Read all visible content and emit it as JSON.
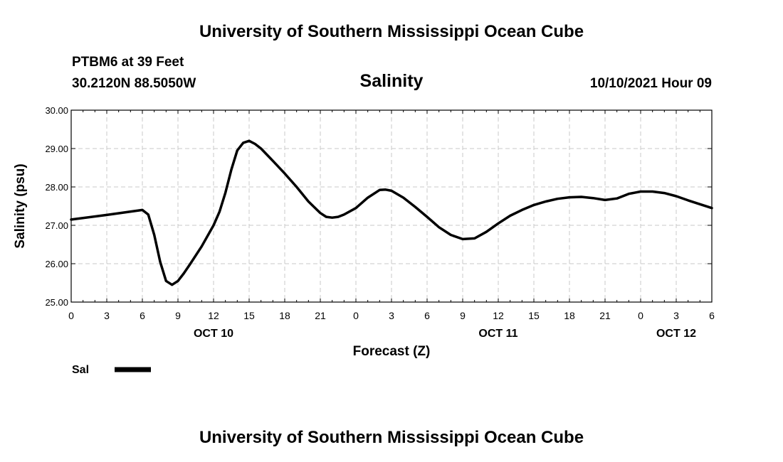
{
  "header": {
    "title_top": "University of Southern Mississippi Ocean Cube",
    "station": "PTBM6 at 39 Feet",
    "coords": "30.2120N  88.5050W",
    "datetime": "10/10/2021 Hour 09"
  },
  "footer": {
    "title_bottom": "University of Southern Mississippi Ocean Cube"
  },
  "colors": {
    "line": "#000000",
    "grid": "#c8c8c8",
    "axis": "#000000"
  },
  "chart_data": {
    "type": "line",
    "title": "Salinity",
    "xlabel": "Forecast (Z)",
    "ylabel": "Salinity (psu)",
    "xlim": [
      0,
      54
    ],
    "ylim": [
      25,
      30
    ],
    "grid": true,
    "legend_position": "bottom-left",
    "x_ticks": [
      0,
      3,
      6,
      9,
      12,
      15,
      18,
      21,
      24,
      27,
      30,
      33,
      36,
      39,
      42,
      45,
      48,
      51,
      54
    ],
    "x_tick_labels": [
      "0",
      "3",
      "6",
      "9",
      "12",
      "15",
      "18",
      "21",
      "0",
      "3",
      "6",
      "9",
      "12",
      "15",
      "18",
      "21",
      "0",
      "3",
      "6"
    ],
    "y_ticks": [
      25,
      26,
      27,
      28,
      29,
      30
    ],
    "y_tick_labels": [
      "25.00",
      "26.00",
      "27.00",
      "28.00",
      "29.00",
      "30.00"
    ],
    "date_labels": [
      {
        "x": 12,
        "text": "OCT 10"
      },
      {
        "x": 36,
        "text": "OCT 11"
      },
      {
        "x": 51,
        "text": "OCT 12"
      }
    ],
    "series": [
      {
        "name": "Sal",
        "x": [
          0,
          3,
          6,
          6.5,
          7,
          7.5,
          8,
          8.5,
          9,
          9.5,
          10,
          11,
          12,
          12.5,
          13,
          13.5,
          14,
          14.5,
          15,
          15.5,
          16,
          17,
          18,
          19,
          20,
          21,
          21.5,
          22,
          22.5,
          23,
          24,
          25,
          26,
          26.5,
          27,
          28,
          29,
          30,
          31,
          32,
          33,
          34,
          35,
          36,
          37,
          38,
          39,
          40,
          41,
          42,
          43,
          44,
          45,
          46,
          47,
          48,
          49,
          50,
          51,
          52,
          53,
          54
        ],
        "values": [
          27.15,
          27.27,
          27.4,
          27.28,
          26.75,
          26.05,
          25.55,
          25.45,
          25.55,
          25.75,
          25.98,
          26.45,
          27.0,
          27.35,
          27.85,
          28.45,
          28.95,
          29.15,
          29.2,
          29.12,
          29.0,
          28.68,
          28.35,
          28.0,
          27.62,
          27.32,
          27.22,
          27.2,
          27.22,
          27.28,
          27.45,
          27.72,
          27.92,
          27.93,
          27.9,
          27.72,
          27.48,
          27.22,
          26.95,
          26.75,
          26.64,
          26.66,
          26.83,
          27.05,
          27.25,
          27.4,
          27.53,
          27.62,
          27.69,
          27.73,
          27.74,
          27.71,
          27.66,
          27.7,
          27.82,
          27.88,
          27.88,
          27.84,
          27.76,
          27.65,
          27.55,
          27.45
        ]
      }
    ]
  }
}
